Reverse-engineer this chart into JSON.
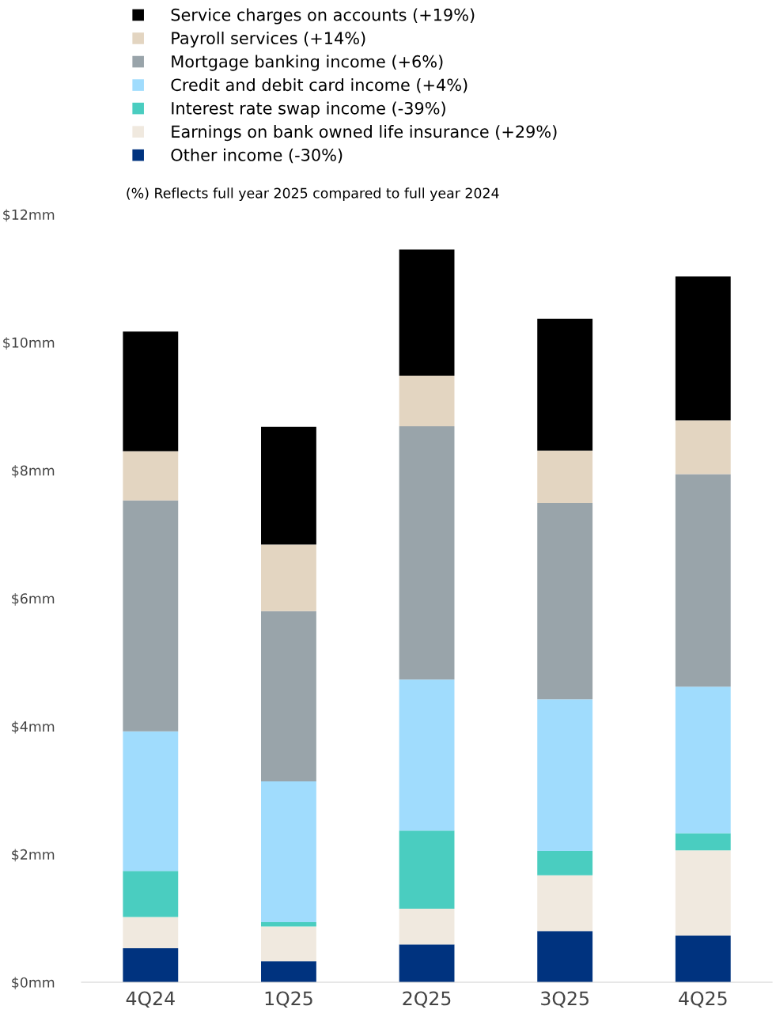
{
  "chart_data": {
    "type": "bar",
    "stacked": true,
    "categories": [
      "4Q24",
      "1Q25",
      "2Q25",
      "3Q25",
      "4Q25"
    ],
    "series": [
      {
        "name": "Other income (-30%)",
        "color": "#00337f",
        "values": [
          0.53,
          0.33,
          0.59,
          0.8,
          0.73
        ]
      },
      {
        "name": "Earnings on bank owned life insurance (+29%)",
        "color": "#f0e9df",
        "values": [
          0.49,
          0.54,
          0.56,
          0.87,
          1.33
        ]
      },
      {
        "name": "Interest rate swap income (-39%)",
        "color": "#4acdc0",
        "values": [
          0.72,
          0.07,
          1.22,
          0.38,
          0.27
        ]
      },
      {
        "name": "Credit and debit card income (+4%)",
        "color": "#a0dcfd",
        "values": [
          2.18,
          2.2,
          2.36,
          2.37,
          2.29
        ]
      },
      {
        "name": "Mortgage banking income (+6%)",
        "color": "#99a4aa",
        "values": [
          3.61,
          2.66,
          3.96,
          3.07,
          3.32
        ]
      },
      {
        "name": "Payroll services (+14%)",
        "color": "#e3d5c1",
        "values": [
          0.77,
          1.04,
          0.79,
          0.82,
          0.84
        ]
      },
      {
        "name": "Service charges on accounts (+19%)",
        "color": "#000000",
        "values": [
          1.87,
          1.84,
          1.97,
          2.06,
          2.25
        ]
      }
    ],
    "ylim": [
      0,
      12
    ],
    "yticks": [
      {
        "value": 0,
        "label": "$0mm"
      },
      {
        "value": 2,
        "label": "$2mm"
      },
      {
        "value": 4,
        "label": "$4mm"
      },
      {
        "value": 6,
        "label": "$6mm"
      },
      {
        "value": 8,
        "label": "$8mm"
      },
      {
        "value": 10,
        "label": "$10mm"
      },
      {
        "value": 12,
        "label": "$12mm"
      }
    ],
    "annotations": [
      "(%) Reflects full year 2025 compared to full year 2024"
    ],
    "legend": "top",
    "grid": false
  }
}
